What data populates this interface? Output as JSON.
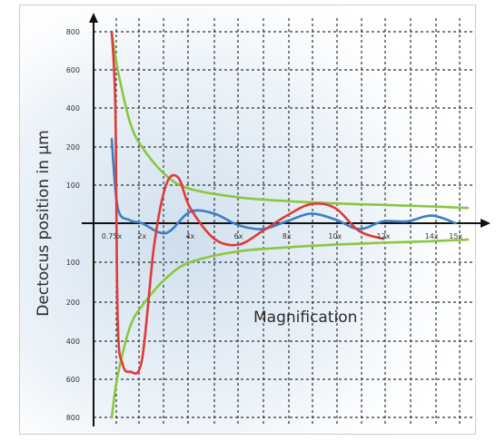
{
  "chart_data": {
    "type": "line",
    "title": "",
    "xlabel": "Magnification",
    "ylabel": "Dectocus position in µm",
    "x_ticks": [
      "0.75x",
      "2x",
      "4x",
      "6x",
      "8x",
      "10x",
      "12x",
      "14x",
      "15x"
    ],
    "x_tick_positions": [
      0.75,
      2,
      4,
      6,
      8,
      10,
      12,
      14,
      15
    ],
    "xlim": [
      0.75,
      15.5
    ],
    "y_ticks_upper": [
      "800",
      "600",
      "400",
      "200",
      "100"
    ],
    "y_ticks_lower": [
      "100",
      "200",
      "400",
      "600",
      "800"
    ],
    "y_tick_values": [
      800,
      600,
      400,
      200,
      100,
      -100,
      -200,
      -400,
      -600,
      -800
    ],
    "ylim": [
      -800,
      800
    ],
    "grid": true,
    "colors": {
      "envelope": "#8cc63f",
      "blue": "#3b7fc4",
      "red": "#e03a3a",
      "axis": "#111111",
      "grid": "#333333"
    },
    "series": [
      {
        "color": "green",
        "x": [
          0.75,
          1,
          1.5,
          2,
          3,
          4,
          6,
          8,
          10,
          12,
          14,
          15.5
        ],
        "y": [
          800,
          600,
          330,
          200,
          125,
          90,
          68,
          58,
          52,
          48,
          44,
          40
        ]
      },
      {
        "color": "green",
        "x": [
          0.75,
          1,
          1.5,
          2,
          3,
          4,
          6,
          8,
          10,
          12,
          14,
          15.5
        ],
        "y": [
          -800,
          -580,
          -330,
          -220,
          -140,
          -100,
          -72,
          -62,
          -55,
          -50,
          -46,
          -42
        ]
      },
      {
        "color": "blue",
        "x": [
          0.75,
          1,
          1.5,
          2,
          3,
          4,
          5,
          6,
          7,
          8,
          9,
          10,
          11,
          12,
          13,
          14,
          15
        ],
        "y": [
          240,
          40,
          8,
          0,
          -25,
          30,
          25,
          -5,
          -15,
          5,
          25,
          10,
          -15,
          5,
          5,
          20,
          0
        ]
      },
      {
        "color": "red",
        "x": [
          0.75,
          0.9,
          1,
          1.2,
          1.5,
          2,
          2.5,
          3,
          3.5,
          4,
          5,
          6,
          7,
          8,
          9,
          10,
          11,
          12
        ],
        "y": [
          800,
          400,
          -300,
          -520,
          -560,
          -500,
          -60,
          100,
          120,
          40,
          -40,
          -55,
          -20,
          20,
          50,
          40,
          -20,
          -40
        ]
      }
    ]
  }
}
